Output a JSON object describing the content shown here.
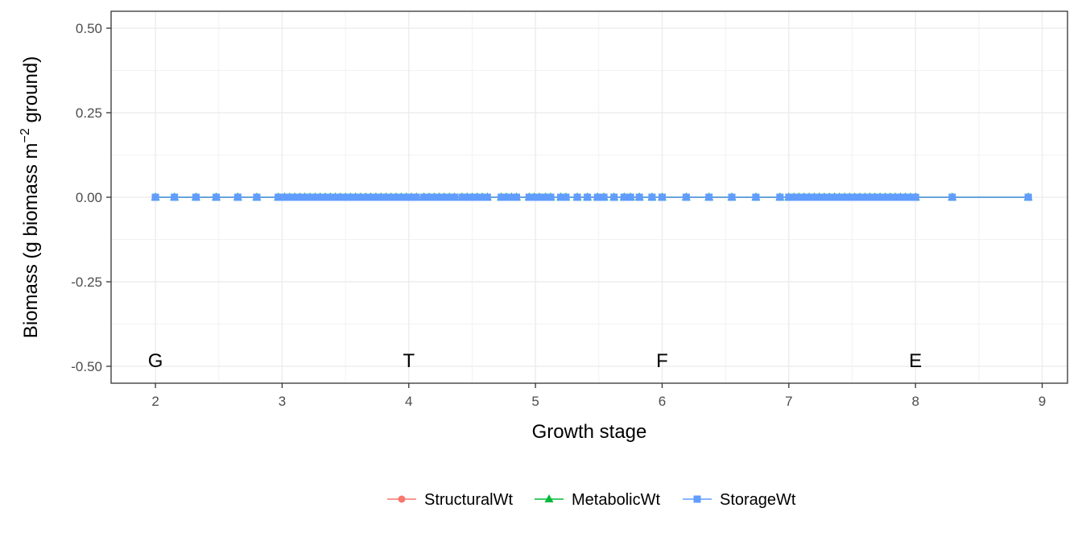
{
  "chart_data": {
    "type": "line",
    "xlabel": "Growth stage",
    "ylabel": {
      "pre": "Biomass (g biomass  m",
      "sup": "−2",
      "post": "  ground)"
    },
    "xlim": [
      1.65,
      9.2
    ],
    "ylim": [
      -0.55,
      0.55
    ],
    "x_ticks": [
      2,
      3,
      4,
      5,
      6,
      7,
      8,
      9
    ],
    "x_tick_labels": [
      "2",
      "3",
      "4",
      "5",
      "6",
      "7",
      "8",
      "9"
    ],
    "y_ticks": [
      0.5,
      0.25,
      0.0,
      -0.25,
      -0.5
    ],
    "y_tick_labels": [
      "0.50",
      "0.25",
      "0.00",
      "-0.25",
      "-0.50"
    ],
    "grid": true,
    "legend_position": "bottom",
    "stage_annotations": [
      {
        "x": 2,
        "y": -0.5,
        "label": "G"
      },
      {
        "x": 4,
        "y": -0.5,
        "label": "T"
      },
      {
        "x": 6,
        "y": -0.5,
        "label": "F"
      },
      {
        "x": 8,
        "y": -0.5,
        "label": "E"
      }
    ],
    "x": [
      2.0,
      2.15,
      2.32,
      2.48,
      2.65,
      2.8,
      2.97,
      3.02,
      3.06,
      3.1,
      3.14,
      3.18,
      3.22,
      3.26,
      3.3,
      3.34,
      3.38,
      3.42,
      3.46,
      3.5,
      3.54,
      3.58,
      3.62,
      3.66,
      3.7,
      3.74,
      3.78,
      3.82,
      3.86,
      3.9,
      3.94,
      3.98,
      4.02,
      4.06,
      4.12,
      4.16,
      4.2,
      4.24,
      4.28,
      4.32,
      4.36,
      4.42,
      4.46,
      4.5,
      4.54,
      4.58,
      4.62,
      4.73,
      4.77,
      4.81,
      4.85,
      4.95,
      4.99,
      5.03,
      5.08,
      5.12,
      5.2,
      5.24,
      5.33,
      5.41,
      5.49,
      5.54,
      5.62,
      5.7,
      5.75,
      5.82,
      5.92,
      6.0,
      6.19,
      6.37,
      6.55,
      6.74,
      6.93,
      7.0,
      7.04,
      7.08,
      7.12,
      7.16,
      7.2,
      7.24,
      7.28,
      7.32,
      7.36,
      7.4,
      7.44,
      7.48,
      7.52,
      7.56,
      7.6,
      7.64,
      7.68,
      7.72,
      7.76,
      7.8,
      7.84,
      7.88,
      7.92,
      7.96,
      8.0,
      8.29,
      8.89
    ],
    "series": [
      {
        "name": "StructuralWt",
        "color": "#F8766D",
        "marker": "circle",
        "constant_value": 0
      },
      {
        "name": "MetabolicWt",
        "color": "#00BA38",
        "marker": "triangle",
        "constant_value": 0
      },
      {
        "name": "StorageWt",
        "color": "#619CFF",
        "marker": "square",
        "constant_value": 0
      }
    ]
  }
}
